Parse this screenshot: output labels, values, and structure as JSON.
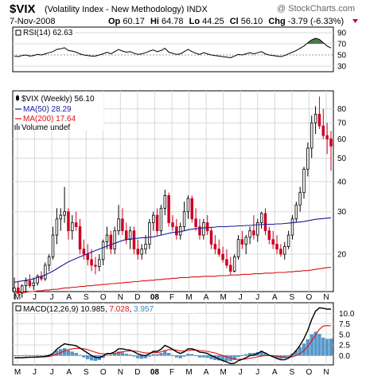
{
  "header": {
    "symbol": "$VIX",
    "name": "(Volatility Index - New Methodology)",
    "exchange": "INDX",
    "watermark": "@ StockCharts.com",
    "date": "7-Nov-2008",
    "op_label": "Op",
    "op": "60.17",
    "hi_label": "Hi",
    "hi": "64.78",
    "lo_label": "Lo",
    "lo": "44.25",
    "cl_label": "Cl",
    "cl": "56.10",
    "chg_label": "Chg",
    "chg": "-3.79 (-6.33%)"
  },
  "colors": {
    "up": "#000000",
    "down": "#cc0022",
    "ma50": "#1a1aa0",
    "ma200": "#dd1111",
    "rsi_fill": "#4a7a4a",
    "macd_line": "#000000",
    "macd_signal": "#dd1111",
    "histogram": "#5599cc",
    "grid": "#d8d8d8"
  },
  "rsi": {
    "label": "RSI(14) 62.63",
    "yticks": [
      90,
      70,
      50,
      30
    ]
  },
  "price": {
    "legend": {
      "main": "$VIX (Weekly) 56.10",
      "ma50": "MA(50) 28.29",
      "ma200": "MA(200) 17.64",
      "volume": "Volume undef"
    },
    "yticks": [
      "80",
      "70",
      "60",
      "50",
      "40",
      "30",
      "20"
    ]
  },
  "macd": {
    "label_prefix": "MACD(12,26,9)",
    "macd": "10.985",
    "signal": "7.028",
    "hist": "3.957",
    "yticks": [
      "10.0",
      "7.5",
      "5.0",
      "2.5",
      "0.0"
    ]
  },
  "xaxis": [
    "M",
    "J",
    "J",
    "A",
    "S",
    "O",
    "N",
    "D",
    "08",
    "F",
    "M",
    "A",
    "M",
    "J",
    "J",
    "A",
    "S",
    "O",
    "N"
  ],
  "chart_data": {
    "type": "candlestick",
    "title": "$VIX (Volatility Index - New Methodology) INDX",
    "scale": "log",
    "ylim": [
      14,
      95
    ],
    "x_labels": [
      "M",
      "J",
      "J",
      "A",
      "S",
      "O",
      "N",
      "D",
      "08",
      "F",
      "M",
      "A",
      "M",
      "J",
      "J",
      "A",
      "S",
      "O",
      "N"
    ],
    "candles": [
      [
        14.0,
        16.0,
        13.0,
        14.5
      ],
      [
        14.5,
        15.5,
        13.5,
        13.8
      ],
      [
        13.8,
        15.0,
        13.2,
        14.8
      ],
      [
        14.8,
        16.0,
        14.0,
        15.5
      ],
      [
        15.5,
        16.5,
        14.5,
        14.8
      ],
      [
        14.8,
        16.0,
        14.2,
        15.2
      ],
      [
        15.2,
        16.5,
        14.8,
        16.2
      ],
      [
        16.2,
        17.0,
        15.5,
        15.8
      ],
      [
        15.8,
        18.5,
        15.5,
        18.0
      ],
      [
        18.0,
        20.0,
        17.0,
        19.5
      ],
      [
        19.5,
        26.0,
        19.0,
        24.0
      ],
      [
        24.0,
        31.0,
        22.0,
        28.0
      ],
      [
        28.0,
        31.0,
        25.0,
        29.0
      ],
      [
        29.0,
        38.0,
        27.0,
        30.0
      ],
      [
        30.0,
        31.0,
        23.0,
        25.0
      ],
      [
        25.0,
        29.0,
        23.0,
        27.0
      ],
      [
        27.0,
        30.0,
        25.0,
        26.0
      ],
      [
        26.0,
        28.0,
        20.0,
        21.0
      ],
      [
        21.0,
        23.0,
        19.0,
        20.0
      ],
      [
        20.0,
        22.0,
        18.0,
        19.0
      ],
      [
        19.0,
        21.0,
        17.0,
        18.0
      ],
      [
        18.0,
        19.5,
        16.5,
        17.8
      ],
      [
        17.8,
        20.0,
        17.0,
        19.0
      ],
      [
        19.0,
        23.0,
        18.0,
        22.5
      ],
      [
        22.5,
        26.0,
        21.0,
        24.0
      ],
      [
        24.0,
        25.0,
        20.0,
        21.0
      ],
      [
        21.0,
        26.0,
        20.0,
        25.0
      ],
      [
        25.0,
        32.0,
        24.0,
        28.0
      ],
      [
        28.0,
        31.0,
        24.0,
        25.0
      ],
      [
        25.0,
        27.0,
        22.0,
        23.0
      ],
      [
        23.0,
        26.0,
        21.0,
        25.0
      ],
      [
        25.0,
        26.0,
        20.0,
        21.0
      ],
      [
        21.0,
        23.0,
        19.0,
        20.0
      ],
      [
        20.0,
        22.0,
        19.0,
        21.0
      ],
      [
        21.0,
        24.0,
        20.0,
        22.0
      ],
      [
        22.0,
        28.0,
        21.0,
        27.0
      ],
      [
        27.0,
        30.0,
        25.0,
        29.0
      ],
      [
        29.0,
        31.0,
        24.0,
        25.0
      ],
      [
        25.0,
        32.0,
        24.0,
        31.0
      ],
      [
        31.0,
        37.0,
        29.0,
        35.0
      ],
      [
        35.0,
        36.0,
        26.0,
        27.0
      ],
      [
        27.0,
        29.0,
        25.0,
        26.0
      ],
      [
        26.0,
        28.0,
        23.0,
        24.0
      ],
      [
        24.0,
        27.0,
        23.0,
        26.0
      ],
      [
        26.0,
        33.0,
        25.0,
        30.0
      ],
      [
        30.0,
        35.0,
        28.0,
        34.0
      ],
      [
        34.0,
        35.0,
        27.0,
        28.0
      ],
      [
        28.0,
        31.0,
        25.0,
        26.0
      ],
      [
        26.0,
        28.0,
        23.0,
        24.0
      ],
      [
        24.0,
        28.0,
        23.0,
        27.0
      ],
      [
        27.0,
        29.0,
        24.0,
        25.0
      ],
      [
        25.0,
        26.0,
        21.0,
        22.0
      ],
      [
        22.0,
        24.0,
        20.0,
        21.0
      ],
      [
        21.0,
        23.0,
        19.5,
        20.0
      ],
      [
        20.0,
        21.5,
        18.5,
        19.0
      ],
      [
        19.0,
        21.0,
        17.5,
        18.0
      ],
      [
        18.0,
        19.5,
        16.5,
        17.0
      ],
      [
        17.0,
        20.0,
        16.8,
        19.5
      ],
      [
        19.5,
        24.0,
        19.0,
        23.0
      ],
      [
        23.0,
        25.0,
        21.0,
        22.0
      ],
      [
        22.0,
        24.0,
        20.0,
        23.5
      ],
      [
        23.5,
        26.0,
        22.0,
        25.0
      ],
      [
        25.0,
        29.0,
        23.0,
        24.0
      ],
      [
        24.0,
        28.0,
        22.5,
        27.0
      ],
      [
        27.0,
        30.0,
        25.5,
        29.5
      ],
      [
        29.5,
        31.0,
        24.0,
        25.0
      ],
      [
        25.0,
        26.0,
        22.0,
        23.0
      ],
      [
        23.0,
        25.0,
        21.0,
        22.0
      ],
      [
        22.0,
        24.0,
        20.0,
        21.0
      ],
      [
        21.0,
        22.0,
        19.5,
        20.0
      ],
      [
        20.0,
        22.5,
        19.0,
        21.5
      ],
      [
        21.5,
        25.0,
        21.0,
        24.0
      ],
      [
        24.0,
        29.0,
        23.0,
        28.0
      ],
      [
        28.0,
        33.0,
        27.0,
        32.0
      ],
      [
        32.0,
        38.0,
        30.0,
        36.0
      ],
      [
        36.0,
        46.0,
        34.0,
        45.0
      ],
      [
        45.0,
        58.0,
        42.0,
        55.0
      ],
      [
        55.0,
        75.0,
        50.0,
        70.0
      ],
      [
        70.0,
        82.0,
        63.0,
        76.0
      ],
      [
        76.0,
        90.0,
        66.0,
        68.0
      ],
      [
        68.0,
        80.0,
        60.0,
        62.0
      ],
      [
        62.0,
        70.0,
        52.0,
        60.0
      ],
      [
        60.17,
        64.78,
        44.25,
        56.1
      ]
    ],
    "ma50": [
      15.3,
      15.4,
      15.5,
      15.6,
      15.7,
      15.8,
      16.0,
      16.2,
      16.4,
      16.7,
      17.0,
      17.4,
      17.8,
      18.2,
      18.6,
      18.9,
      19.2,
      19.5,
      19.8,
      20.1,
      20.4,
      20.7,
      21.0,
      21.3,
      21.6,
      21.9,
      22.2,
      22.5,
      22.8,
      23.0,
      23.1,
      23.2,
      23.3,
      23.4,
      23.4,
      23.5,
      23.6,
      23.8,
      24.0,
      24.2,
      24.4,
      24.6,
      24.7,
      24.8,
      25.0,
      25.2,
      25.4,
      25.5,
      25.6,
      25.7,
      25.8,
      25.8,
      25.9,
      26.0,
      26.0,
      26.0,
      26.1,
      26.1,
      26.2,
      26.2,
      26.3,
      26.3,
      26.4,
      26.5,
      26.5,
      26.6,
      26.6,
      26.6,
      26.7,
      26.7,
      26.8,
      26.9,
      27.0,
      27.1,
      27.2,
      27.3,
      27.5,
      27.7,
      27.9,
      28.0,
      28.1,
      28.2,
      28.29
    ],
    "ma200": [
      13.8,
      13.8,
      13.9,
      13.9,
      14.0,
      14.0,
      14.1,
      14.1,
      14.2,
      14.2,
      14.3,
      14.3,
      14.4,
      14.5,
      14.5,
      14.6,
      14.6,
      14.7,
      14.7,
      14.8,
      14.8,
      14.9,
      14.9,
      15.0,
      15.0,
      15.1,
      15.1,
      15.2,
      15.2,
      15.3,
      15.3,
      15.4,
      15.4,
      15.5,
      15.5,
      15.6,
      15.6,
      15.7,
      15.7,
      15.8,
      15.8,
      15.9,
      15.9,
      16.0,
      16.0,
      16.0,
      16.1,
      16.1,
      16.1,
      16.2,
      16.2,
      16.2,
      16.2,
      16.3,
      16.3,
      16.3,
      16.4,
      16.4,
      16.4,
      16.5,
      16.5,
      16.5,
      16.6,
      16.6,
      16.6,
      16.7,
      16.7,
      16.7,
      16.8,
      16.8,
      16.8,
      16.9,
      16.9,
      17.0,
      17.0,
      17.1,
      17.1,
      17.2,
      17.3,
      17.4,
      17.5,
      17.6,
      17.64
    ],
    "rsi_values": [
      48,
      47,
      49,
      50,
      48,
      49,
      51,
      50,
      52,
      54,
      56,
      60,
      61,
      63,
      58,
      57,
      55,
      52,
      50,
      49,
      48,
      48,
      50,
      52,
      55,
      52,
      56,
      60,
      57,
      55,
      56,
      53,
      51,
      52,
      54,
      57,
      59,
      56,
      58,
      62,
      55,
      53,
      51,
      52,
      56,
      60,
      56,
      53,
      51,
      54,
      52,
      50,
      49,
      48,
      47,
      46,
      45,
      48,
      51,
      50,
      52,
      54,
      52,
      54,
      56,
      52,
      50,
      49,
      48,
      47,
      49,
      52,
      55,
      58,
      62,
      66,
      72,
      77,
      80,
      78,
      72,
      66,
      62.63
    ],
    "macd_line": [
      -0.5,
      -0.5,
      -0.5,
      -0.4,
      -0.4,
      -0.4,
      -0.3,
      -0.3,
      -0.2,
      0.0,
      0.5,
      1.5,
      2.2,
      2.8,
      2.6,
      2.5,
      2.3,
      1.8,
      1.2,
      0.6,
      0.0,
      -0.4,
      -0.5,
      -0.1,
      0.5,
      0.5,
      0.9,
      1.6,
      1.6,
      1.4,
      1.3,
      0.9,
      0.4,
      0.1,
      0.0,
      0.4,
      1.0,
      1.0,
      1.5,
      2.4,
      2.0,
      1.5,
      0.9,
      0.5,
      0.9,
      1.6,
      1.6,
      1.3,
      0.8,
      0.7,
      0.5,
      0.0,
      -0.4,
      -0.8,
      -1.2,
      -1.5,
      -1.9,
      -1.8,
      -1.2,
      -0.9,
      -0.5,
      0.0,
      0.1,
      0.5,
      1.0,
      0.6,
      0.1,
      -0.3,
      -0.7,
      -1.0,
      -1.0,
      -0.6,
      0.2,
      1.2,
      2.5,
      4.0,
      6.0,
      8.5,
      10.5,
      11.3,
      11.2,
      11.0,
      10.985
    ],
    "macd_signal": [
      -0.5,
      -0.5,
      -0.5,
      -0.5,
      -0.4,
      -0.4,
      -0.4,
      -0.3,
      -0.3,
      -0.2,
      0.0,
      0.3,
      0.7,
      1.1,
      1.4,
      1.6,
      1.7,
      1.7,
      1.6,
      1.4,
      1.1,
      0.8,
      0.5,
      0.4,
      0.4,
      0.4,
      0.5,
      0.7,
      0.9,
      1.0,
      1.1,
      1.1,
      1.0,
      0.8,
      0.6,
      0.6,
      0.7,
      0.7,
      0.9,
      1.2,
      1.4,
      1.4,
      1.3,
      1.1,
      1.1,
      1.2,
      1.3,
      1.3,
      1.2,
      1.1,
      1.0,
      0.8,
      0.6,
      0.3,
      0.0,
      -0.3,
      -0.6,
      -0.8,
      -0.9,
      -0.9,
      -0.8,
      -0.6,
      -0.5,
      -0.3,
      -0.1,
      0.0,
      0.0,
      0.0,
      -0.1,
      -0.3,
      -0.4,
      -0.4,
      -0.3,
      0.0,
      0.5,
      1.2,
      2.2,
      3.5,
      4.9,
      6.2,
      7.0,
      7.1,
      7.028
    ]
  }
}
